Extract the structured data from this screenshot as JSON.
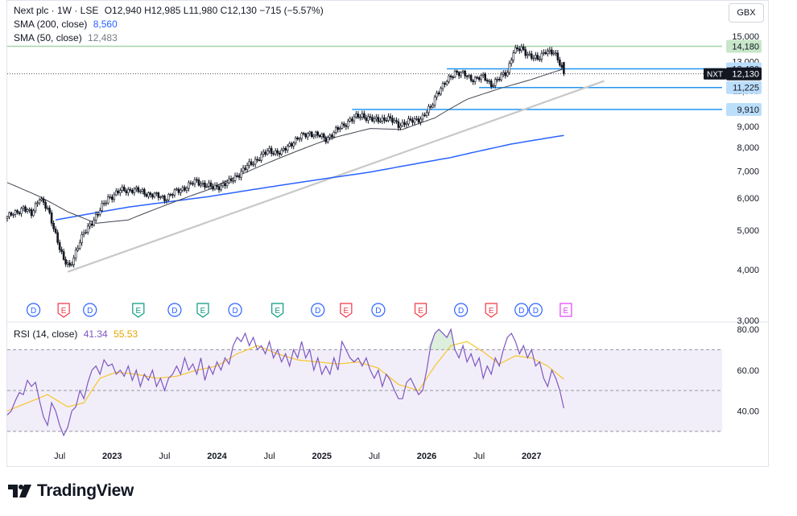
{
  "header": {
    "symbol": "Next plc · 1W · LSE",
    "ohlc": "O12,940  H12,985  L11,980  C12,130  −715 (−5.57%)",
    "sma200_label": "SMA (200, close)",
    "sma200_value": "8,560",
    "sma50_label": "SMA (50, close)",
    "sma50_value": "12,483",
    "currency": "GBX"
  },
  "colors": {
    "up": "#ffffff",
    "down": "#131722",
    "sma200": "#2962ff",
    "sma50": "#434651",
    "rsi": "#7e57c2",
    "rsi_ma": "#f7c52b",
    "trendline": "#c8c8c8",
    "level_blue": "#2196f3",
    "level_green": "#a5d6a7"
  },
  "chart_data": [
    {
      "type": "candlestick",
      "title": "",
      "ylim": [
        3000,
        15500
      ],
      "y_scale": "log",
      "y_ticks": [
        "3,000",
        "4,000",
        "5,000",
        "6,000",
        "7,000",
        "8,000",
        "9,000",
        "10,000",
        "11,000",
        "13,000",
        "15,000"
      ],
      "x_ticks": [
        "Jul",
        "2023",
        "Jul",
        "2024",
        "Jul",
        "2025",
        "Jul",
        "2026",
        "Jul",
        "2027"
      ],
      "close_path": [
        [
          0,
          5400
        ],
        [
          4,
          5500
        ],
        [
          8,
          5700
        ],
        [
          12,
          5450
        ],
        [
          16,
          6050
        ],
        [
          20,
          5600
        ],
        [
          24,
          4900
        ],
        [
          28,
          4200
        ],
        [
          31,
          4050
        ],
        [
          36,
          4700
        ],
        [
          42,
          5250
        ],
        [
          46,
          5600
        ],
        [
          50,
          6000
        ],
        [
          56,
          6250
        ],
        [
          62,
          6300
        ],
        [
          70,
          6150
        ],
        [
          78,
          6000
        ],
        [
          86,
          6300
        ],
        [
          94,
          6600
        ],
        [
          102,
          6350
        ],
        [
          110,
          6550
        ],
        [
          118,
          7100
        ],
        [
          124,
          7500
        ],
        [
          130,
          7850
        ],
        [
          136,
          7750
        ],
        [
          142,
          8300
        ],
        [
          150,
          8700
        ],
        [
          158,
          8400
        ],
        [
          164,
          8850
        ],
        [
          170,
          9350
        ],
        [
          176,
          9600
        ],
        [
          182,
          9300
        ],
        [
          188,
          9450
        ],
        [
          194,
          9100
        ],
        [
          200,
          9250
        ],
        [
          206,
          9500
        ],
        [
          210,
          10000
        ],
        [
          213,
          10900
        ],
        [
          218,
          11600
        ],
        [
          222,
          12300
        ],
        [
          226,
          12100
        ],
        [
          230,
          11800
        ],
        [
          236,
          11900
        ],
        [
          240,
          11450
        ],
        [
          244,
          11800
        ],
        [
          248,
          12300
        ],
        [
          251,
          13800
        ],
        [
          255,
          13950
        ],
        [
          259,
          13500
        ],
        [
          263,
          13100
        ],
        [
          267,
          13900
        ],
        [
          271,
          13600
        ],
        [
          274,
          12900
        ],
        [
          276,
          12130
        ]
      ],
      "sma200_path": [
        [
          24,
          5300
        ],
        [
          60,
          5700
        ],
        [
          100,
          6050
        ],
        [
          140,
          6500
        ],
        [
          180,
          6950
        ],
        [
          220,
          7550
        ],
        [
          250,
          8150
        ],
        [
          276,
          8560
        ]
      ],
      "sma50_path": [
        [
          0,
          6550
        ],
        [
          16,
          6050
        ],
        [
          30,
          5550
        ],
        [
          44,
          5200
        ],
        [
          60,
          5300
        ],
        [
          80,
          5800
        ],
        [
          100,
          6300
        ],
        [
          120,
          7000
        ],
        [
          140,
          7700
        ],
        [
          160,
          8400
        ],
        [
          180,
          8900
        ],
        [
          196,
          8850
        ],
        [
          212,
          9450
        ],
        [
          228,
          10500
        ],
        [
          244,
          11150
        ],
        [
          260,
          11750
        ],
        [
          276,
          12483
        ]
      ],
      "trendline": [
        [
          30,
          3950
        ],
        [
          296,
          11650
        ]
      ],
      "levels": [
        {
          "label": "14,180",
          "value": 14180,
          "kind": "resistance"
        },
        {
          "label": "12,480",
          "value": 12480,
          "kind": "sma"
        },
        {
          "label": "11,225",
          "value": 11225,
          "kind": "support"
        },
        {
          "label": "9,910",
          "value": 9910,
          "kind": "support"
        }
      ],
      "last_price": {
        "symbol": "NXT",
        "label": "12,130",
        "value": 12130
      },
      "events": [
        {
          "week": 13,
          "letter": "D",
          "kind": "dividend"
        },
        {
          "week": 28,
          "letter": "E",
          "kind": "earnings-red"
        },
        {
          "week": 41,
          "letter": "D",
          "kind": "dividend"
        },
        {
          "week": 65,
          "letter": "E",
          "kind": "earnings-green"
        },
        {
          "week": 83,
          "letter": "D",
          "kind": "dividend"
        },
        {
          "week": 97,
          "letter": "E",
          "kind": "earnings-green"
        },
        {
          "week": 113,
          "letter": "D",
          "kind": "dividend"
        },
        {
          "week": 134,
          "letter": "E",
          "kind": "earnings-green"
        },
        {
          "week": 154,
          "letter": "D",
          "kind": "dividend"
        },
        {
          "week": 168,
          "letter": "E",
          "kind": "earnings-red"
        },
        {
          "week": 184,
          "letter": "D",
          "kind": "dividend"
        },
        {
          "week": 205,
          "letter": "E",
          "kind": "earnings-red"
        },
        {
          "week": 225,
          "letter": "D",
          "kind": "dividend"
        },
        {
          "week": 240,
          "letter": "E",
          "kind": "earnings-red"
        },
        {
          "week": 255,
          "letter": "D",
          "kind": "dividend"
        },
        {
          "week": 262,
          "letter": "D",
          "kind": "dividend"
        },
        {
          "week": 277,
          "letter": "E",
          "kind": "earnings-upcoming"
        }
      ]
    },
    {
      "type": "line",
      "title": "RSI (14, close)",
      "rsi_value": "41.34",
      "rsi_ma_value": "55.53",
      "ylim": [
        26,
        82
      ],
      "y_ticks": [
        "80.00",
        "60.00",
        "40.00"
      ],
      "bands": [
        70,
        50,
        30
      ],
      "series": [
        {
          "name": "RSI",
          "points": [
            [
              0,
              38
            ],
            [
              2,
              40
            ],
            [
              4,
              45
            ],
            [
              6,
              49
            ],
            [
              8,
              48
            ],
            [
              10,
              55
            ],
            [
              12,
              52
            ],
            [
              14,
              54
            ],
            [
              16,
              45
            ],
            [
              18,
              37
            ],
            [
              20,
              33
            ],
            [
              22,
              44
            ],
            [
              24,
              40
            ],
            [
              26,
              33
            ],
            [
              28,
              28
            ],
            [
              30,
              32
            ],
            [
              32,
              40
            ],
            [
              34,
              42
            ],
            [
              36,
              50
            ],
            [
              38,
              46
            ],
            [
              40,
              54
            ],
            [
              42,
              60
            ],
            [
              44,
              62
            ],
            [
              46,
              58
            ],
            [
              48,
              65
            ],
            [
              50,
              62
            ],
            [
              52,
              63
            ],
            [
              54,
              58
            ],
            [
              56,
              60
            ],
            [
              58,
              57
            ],
            [
              60,
              62
            ],
            [
              62,
              55
            ],
            [
              64,
              60
            ],
            [
              66,
              52
            ],
            [
              68,
              58
            ],
            [
              70,
              55
            ],
            [
              72,
              60
            ],
            [
              74,
              52
            ],
            [
              76,
              56
            ],
            [
              78,
              50
            ],
            [
              80,
              56
            ],
            [
              82,
              58
            ],
            [
              84,
              62
            ],
            [
              86,
              58
            ],
            [
              88,
              66
            ],
            [
              90,
              60
            ],
            [
              92,
              63
            ],
            [
              94,
              58
            ],
            [
              96,
              66
            ],
            [
              98,
              55
            ],
            [
              100,
              62
            ],
            [
              102,
              58
            ],
            [
              104,
              64
            ],
            [
              106,
              60
            ],
            [
              108,
              66
            ],
            [
              110,
              63
            ],
            [
              112,
              72
            ],
            [
              114,
              76
            ],
            [
              116,
              74
            ],
            [
              118,
              78
            ],
            [
              120,
              72
            ],
            [
              122,
              76
            ],
            [
              124,
              70
            ],
            [
              126,
              72
            ],
            [
              128,
              68
            ],
            [
              130,
              74
            ],
            [
              132,
              66
            ],
            [
              134,
              70
            ],
            [
              136,
              64
            ],
            [
              138,
              68
            ],
            [
              140,
              62
            ],
            [
              142,
              70
            ],
            [
              144,
              66
            ],
            [
              146,
              74
            ],
            [
              148,
              66
            ],
            [
              150,
              70
            ],
            [
              152,
              60
            ],
            [
              154,
              66
            ],
            [
              156,
              58
            ],
            [
              158,
              62
            ],
            [
              160,
              58
            ],
            [
              162,
              66
            ],
            [
              164,
              60
            ],
            [
              166,
              74
            ],
            [
              168,
              70
            ],
            [
              170,
              66
            ],
            [
              172,
              64
            ],
            [
              174,
              66
            ],
            [
              176,
              62
            ],
            [
              178,
              66
            ],
            [
              180,
              60
            ],
            [
              182,
              56
            ],
            [
              184,
              60
            ],
            [
              186,
              52
            ],
            [
              188,
              58
            ],
            [
              190,
              55
            ],
            [
              192,
              50
            ],
            [
              194,
              46
            ],
            [
              196,
              46
            ],
            [
              198,
              54
            ],
            [
              200,
              56
            ],
            [
              202,
              52
            ],
            [
              204,
              48
            ],
            [
              206,
              50
            ],
            [
              208,
              60
            ],
            [
              210,
              72
            ],
            [
              212,
              78
            ],
            [
              214,
              80
            ],
            [
              216,
              78
            ],
            [
              218,
              76
            ],
            [
              220,
              80
            ],
            [
              222,
              70
            ],
            [
              224,
              66
            ],
            [
              226,
              72
            ],
            [
              228,
              64
            ],
            [
              230,
              68
            ],
            [
              232,
              62
            ],
            [
              234,
              66
            ],
            [
              236,
              56
            ],
            [
              238,
              62
            ],
            [
              240,
              58
            ],
            [
              242,
              66
            ],
            [
              244,
              62
            ],
            [
              246,
              70
            ],
            [
              248,
              76
            ],
            [
              250,
              78
            ],
            [
              252,
              74
            ],
            [
              254,
              68
            ],
            [
              256,
              72
            ],
            [
              258,
              66
            ],
            [
              260,
              70
            ],
            [
              262,
              62
            ],
            [
              264,
              64
            ],
            [
              266,
              56
            ],
            [
              268,
              52
            ],
            [
              270,
              60
            ],
            [
              272,
              56
            ],
            [
              274,
              50
            ],
            [
              276,
              41.34
            ]
          ]
        },
        {
          "name": "RSI-based MA",
          "points": [
            [
              0,
              40
            ],
            [
              10,
              44
            ],
            [
              20,
              48
            ],
            [
              30,
              42
            ],
            [
              38,
              44
            ],
            [
              46,
              56
            ],
            [
              54,
              59
            ],
            [
              64,
              58
            ],
            [
              74,
              56
            ],
            [
              84,
              57
            ],
            [
              94,
              60
            ],
            [
              104,
              62
            ],
            [
              114,
              68
            ],
            [
              124,
              72
            ],
            [
              134,
              68
            ],
            [
              144,
              65
            ],
            [
              154,
              64
            ],
            [
              164,
              63
            ],
            [
              174,
              64
            ],
            [
              184,
              61
            ],
            [
              194,
              53
            ],
            [
              204,
              50
            ],
            [
              212,
              62
            ],
            [
              220,
              72
            ],
            [
              228,
              74
            ],
            [
              236,
              69
            ],
            [
              244,
              63
            ],
            [
              252,
              67
            ],
            [
              260,
              66
            ],
            [
              268,
              62
            ],
            [
              276,
              55.53
            ]
          ]
        }
      ]
    }
  ]
}
